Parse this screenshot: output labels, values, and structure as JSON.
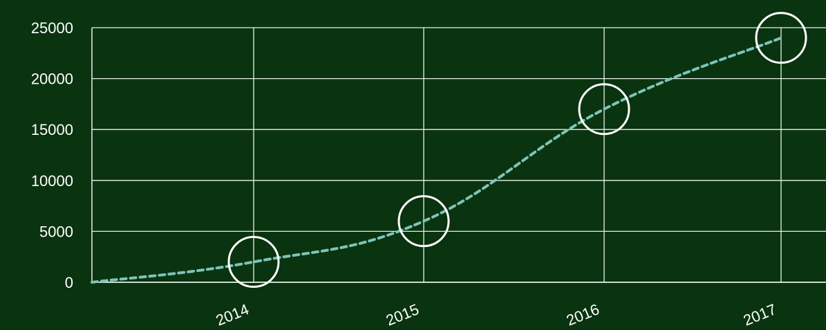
{
  "chart_data": {
    "type": "line",
    "title": "",
    "xlabel": "",
    "ylabel": "",
    "x": [
      "",
      "2014",
      "2015",
      "2016",
      "2017"
    ],
    "values": [
      0,
      2000,
      6000,
      17000,
      24000
    ],
    "x_tick_labels": [
      "2014",
      "2015",
      "2016",
      "2017"
    ],
    "y_ticks": [
      0,
      5000,
      10000,
      15000,
      20000,
      25000
    ],
    "y_tick_labels": [
      "0",
      "5000",
      "10000",
      "15000",
      "20000",
      "25000"
    ],
    "ylim": [
      0,
      25000
    ],
    "grid": true,
    "line_style": "dashed",
    "markers": "hollow-circles",
    "colors": {
      "background": "#0a3310",
      "grid": "#e8f3ea",
      "line": "#7dc4b8",
      "marker": "#ffffff",
      "text": "#ffffff"
    }
  }
}
